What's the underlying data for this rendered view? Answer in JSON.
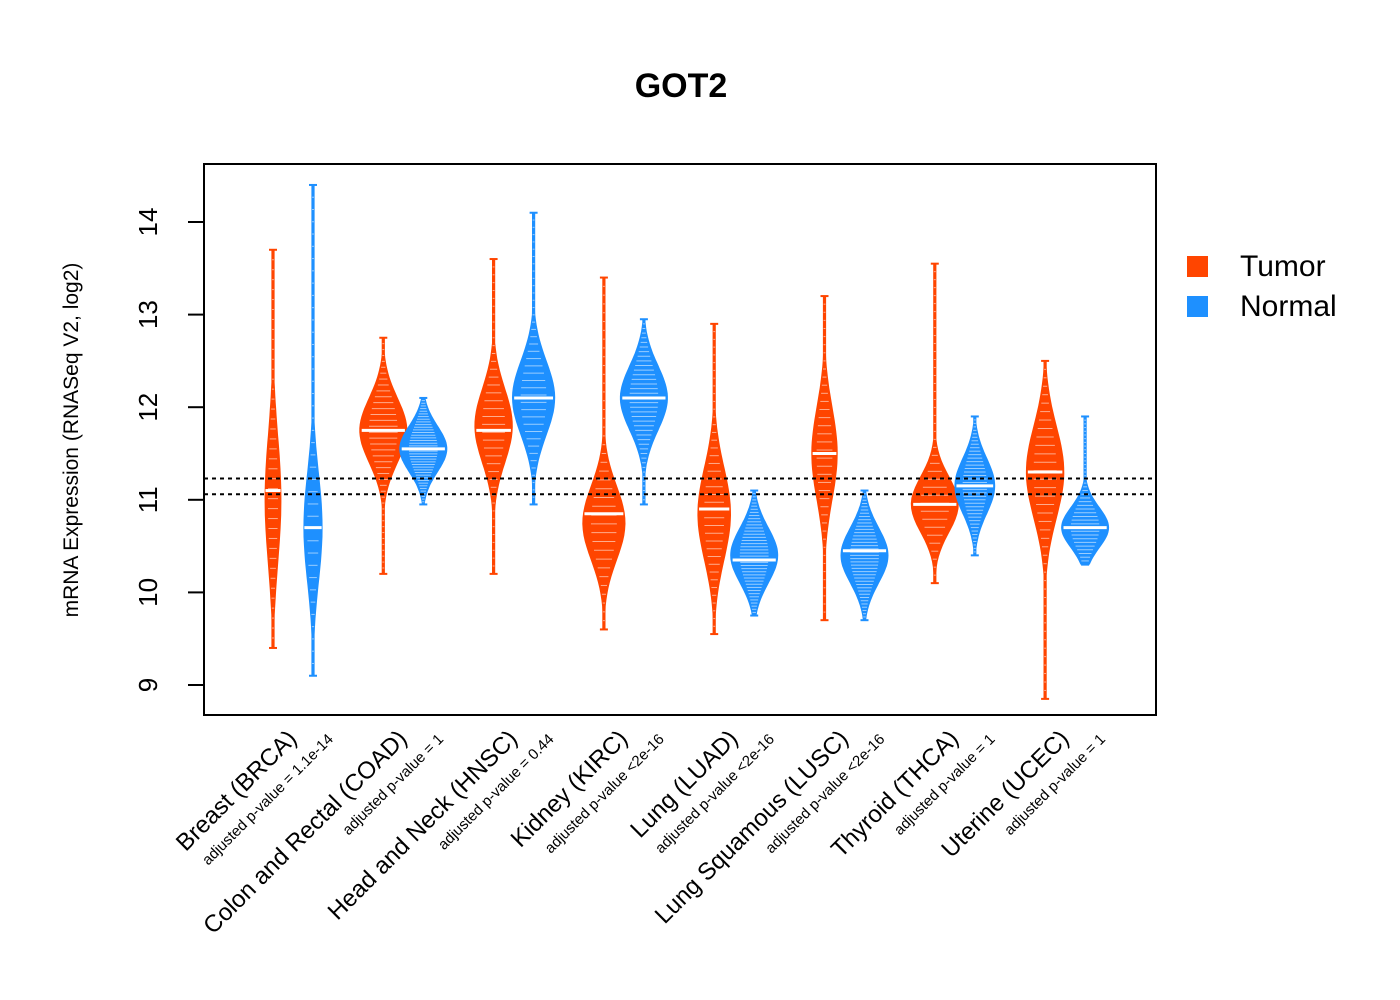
{
  "chart_data": {
    "type": "violin",
    "title": "GOT2",
    "ylabel": "mRNA Expression (RNASeq V2, log2)",
    "xlabel": "",
    "ylim": [
      8.65,
      14.6
    ],
    "yticks": [
      9,
      10,
      11,
      12,
      13,
      14
    ],
    "reference_lines": [
      11.23,
      11.06
    ],
    "legend": {
      "position": "right",
      "entries": [
        {
          "name": "Tumor",
          "color": "#ff4500"
        },
        {
          "name": "Normal",
          "color": "#1e90ff"
        }
      ]
    },
    "categories": [
      {
        "label": "Breast (BRCA)",
        "pvalue": "adjusted p-value = 1.1e-14",
        "tumor": {
          "min": 9.4,
          "max": 13.7,
          "center": 11.0,
          "spread": 0.7,
          "width": 0.35,
          "median": 11.1
        },
        "normal": {
          "min": 9.1,
          "max": 14.4,
          "center": 10.7,
          "spread": 0.6,
          "width": 0.4,
          "median": 10.7
        }
      },
      {
        "label": "Colon and Rectal (COAD)",
        "pvalue": "adjusted p-value = 1",
        "tumor": {
          "min": 10.2,
          "max": 12.75,
          "center": 11.75,
          "spread": 0.35,
          "width": 1.0,
          "median": 11.75
        },
        "normal": {
          "min": 10.95,
          "max": 12.1,
          "center": 11.55,
          "spread": 0.25,
          "width": 1.0,
          "median": 11.55
        }
      },
      {
        "label": "Head and Neck (HNSC)",
        "pvalue": "adjusted p-value = 0.44",
        "tumor": {
          "min": 10.2,
          "max": 13.6,
          "center": 11.8,
          "spread": 0.4,
          "width": 0.8,
          "median": 11.75
        },
        "normal": {
          "min": 10.95,
          "max": 14.1,
          "center": 12.1,
          "spread": 0.4,
          "width": 0.9,
          "median": 12.1
        }
      },
      {
        "label": "Kidney (KIRC)",
        "pvalue": "adjusted p-value <2e-16",
        "tumor": {
          "min": 9.6,
          "max": 13.4,
          "center": 10.75,
          "spread": 0.4,
          "width": 0.9,
          "median": 10.85
        },
        "normal": {
          "min": 10.95,
          "max": 12.95,
          "center": 12.1,
          "spread": 0.35,
          "width": 1.0,
          "median": 12.1
        }
      },
      {
        "label": "Lung (LUAD)",
        "pvalue": "adjusted p-value <2e-16",
        "tumor": {
          "min": 9.55,
          "max": 12.9,
          "center": 10.85,
          "spread": 0.5,
          "width": 0.7,
          "median": 10.9
        },
        "normal": {
          "min": 9.75,
          "max": 11.1,
          "center": 10.4,
          "spread": 0.3,
          "width": 1.0,
          "median": 10.35
        }
      },
      {
        "label": "Lung Squamous (LUSC)",
        "pvalue": "adjusted p-value <2e-16",
        "tumor": {
          "min": 9.7,
          "max": 13.2,
          "center": 11.5,
          "spread": 0.5,
          "width": 0.55,
          "median": 11.5
        },
        "normal": {
          "min": 9.7,
          "max": 11.1,
          "center": 10.4,
          "spread": 0.3,
          "width": 1.0,
          "median": 10.45
        }
      },
      {
        "label": "Thyroid (THCA)",
        "pvalue": "adjusted p-value = 1",
        "tumor": {
          "min": 10.1,
          "max": 13.55,
          "center": 10.95,
          "spread": 0.3,
          "width": 1.0,
          "median": 10.95
        },
        "normal": {
          "min": 10.4,
          "max": 11.9,
          "center": 11.15,
          "spread": 0.3,
          "width": 0.85,
          "median": 11.15
        }
      },
      {
        "label": "Uterine (UCEC)",
        "pvalue": "adjusted p-value = 1",
        "tumor": {
          "min": 8.85,
          "max": 12.5,
          "center": 11.3,
          "spread": 0.5,
          "width": 0.8,
          "median": 11.3
        },
        "normal": {
          "min": 10.3,
          "max": 11.9,
          "center": 10.7,
          "spread": 0.22,
          "width": 1.0,
          "median": 10.7
        }
      }
    ]
  }
}
